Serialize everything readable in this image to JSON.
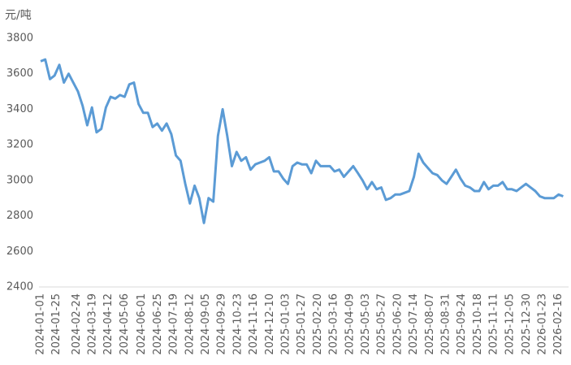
{
  "chart_data": {
    "type": "line",
    "y_label": "元/吨",
    "x": [
      "2024-01-01",
      "2024-01-08",
      "2024-01-15",
      "2024-01-22",
      "2024-01-29",
      "2024-02-05",
      "2024-02-12",
      "2024-02-19",
      "2024-02-26",
      "2024-03-04",
      "2024-03-11",
      "2024-03-18",
      "2024-03-25",
      "2024-04-01",
      "2024-04-08",
      "2024-04-15",
      "2024-04-22",
      "2024-04-29",
      "2024-05-06",
      "2024-05-13",
      "2024-05-20",
      "2024-05-27",
      "2024-06-03",
      "2024-06-10",
      "2024-06-17",
      "2024-06-24",
      "2024-07-01",
      "2024-07-08",
      "2024-07-15",
      "2024-07-22",
      "2024-07-29",
      "2024-08-05",
      "2024-08-12",
      "2024-08-19",
      "2024-08-26",
      "2024-09-02",
      "2024-09-09",
      "2024-09-16",
      "2024-09-23",
      "2024-09-30",
      "2024-10-07",
      "2024-10-14",
      "2024-10-21",
      "2024-10-28",
      "2024-11-04",
      "2024-11-11",
      "2024-11-18",
      "2024-11-25",
      "2024-12-02",
      "2024-12-09",
      "2024-12-16",
      "2024-12-23",
      "2024-12-30",
      "2025-01-06",
      "2025-01-13",
      "2025-01-20",
      "2025-01-27",
      "2025-02-03",
      "2025-02-10",
      "2025-02-17",
      "2025-02-24",
      "2025-03-03",
      "2025-03-10",
      "2025-03-17",
      "2025-03-24",
      "2025-03-31",
      "2025-04-07",
      "2025-04-14",
      "2025-04-21",
      "2025-04-28",
      "2025-05-05",
      "2025-05-12",
      "2025-05-19",
      "2025-05-26",
      "2025-06-02",
      "2025-06-09",
      "2025-06-16",
      "2025-06-23",
      "2025-06-30",
      "2025-07-07",
      "2025-07-14",
      "2025-07-21",
      "2025-07-28",
      "2025-08-04",
      "2025-08-11",
      "2025-08-18",
      "2025-08-25",
      "2025-09-01",
      "2025-09-08",
      "2025-09-15",
      "2025-09-22",
      "2025-09-29",
      "2025-10-06",
      "2025-10-13",
      "2025-10-20",
      "2025-10-27",
      "2025-11-03",
      "2025-11-10",
      "2025-11-17",
      "2025-11-24",
      "2025-12-01",
      "2025-12-08",
      "2025-12-15",
      "2025-12-22",
      "2025-12-29",
      "2026-01-05",
      "2026-01-12",
      "2026-01-19",
      "2026-01-26",
      "2026-02-02",
      "2026-02-09",
      "2026-02-16",
      "2026-02-23"
    ],
    "series": [
      {
        "color": "#5b9bd5",
        "values": [
          3670,
          3680,
          3570,
          3590,
          3650,
          3550,
          3600,
          3550,
          3500,
          3420,
          3310,
          3410,
          3270,
          3290,
          3410,
          3470,
          3460,
          3480,
          3470,
          3540,
          3550,
          3430,
          3380,
          3380,
          3300,
          3320,
          3280,
          3320,
          3260,
          3140,
          3110,
          2980,
          2870,
          2970,
          2900,
          2760,
          2900,
          2880,
          3250,
          3400,
          3250,
          3080,
          3160,
          3110,
          3130,
          3060,
          3090,
          3100,
          3110,
          3130,
          3050,
          3050,
          3010,
          2980,
          3080,
          3100,
          3090,
          3090,
          3040,
          3110,
          3080,
          3080,
          3080,
          3050,
          3060,
          3020,
          3050,
          3080,
          3040,
          3000,
          2950,
          2990,
          2950,
          2960,
          2890,
          2900,
          2920,
          2920,
          2930,
          2940,
          3020,
          3150,
          3100,
          3070,
          3040,
          3030,
          3000,
          2980,
          3020,
          3060,
          3010,
          2970,
          2960,
          2940,
          2940,
          2990,
          2950,
          2970,
          2970,
          2990,
          2950,
          2950,
          2940,
          2960,
          2980,
          2960,
          2940,
          2910,
          2900,
          2900,
          2900,
          2920,
          2910
        ]
      }
    ],
    "xlim": [
      "2024-01-01",
      "2026-03-03"
    ],
    "xticks": [
      "2024-01-01",
      "2024-01-25",
      "2024-02-24",
      "2024-03-19",
      "2024-04-12",
      "2024-05-06",
      "2024-06-01",
      "2024-06-25",
      "2024-07-19",
      "2024-08-12",
      "2024-09-05",
      "2024-09-29",
      "2024-10-23",
      "2024-11-16",
      "2024-12-10",
      "2025-01-03",
      "2025-01-27",
      "2025-02-20",
      "2025-03-16",
      "2025-04-09",
      "2025-05-03",
      "2025-05-27",
      "2025-06-20",
      "2025-07-14",
      "2025-08-07",
      "2025-08-31",
      "2025-09-24",
      "2025-10-18",
      "2025-11-11",
      "2025-12-05",
      "2025-12-30",
      "2026-01-23",
      "2026-02-16"
    ],
    "ylim": [
      2400,
      3800
    ],
    "yticks": [
      2400,
      2600,
      2800,
      3000,
      3200,
      3400,
      3600,
      3800
    ]
  }
}
